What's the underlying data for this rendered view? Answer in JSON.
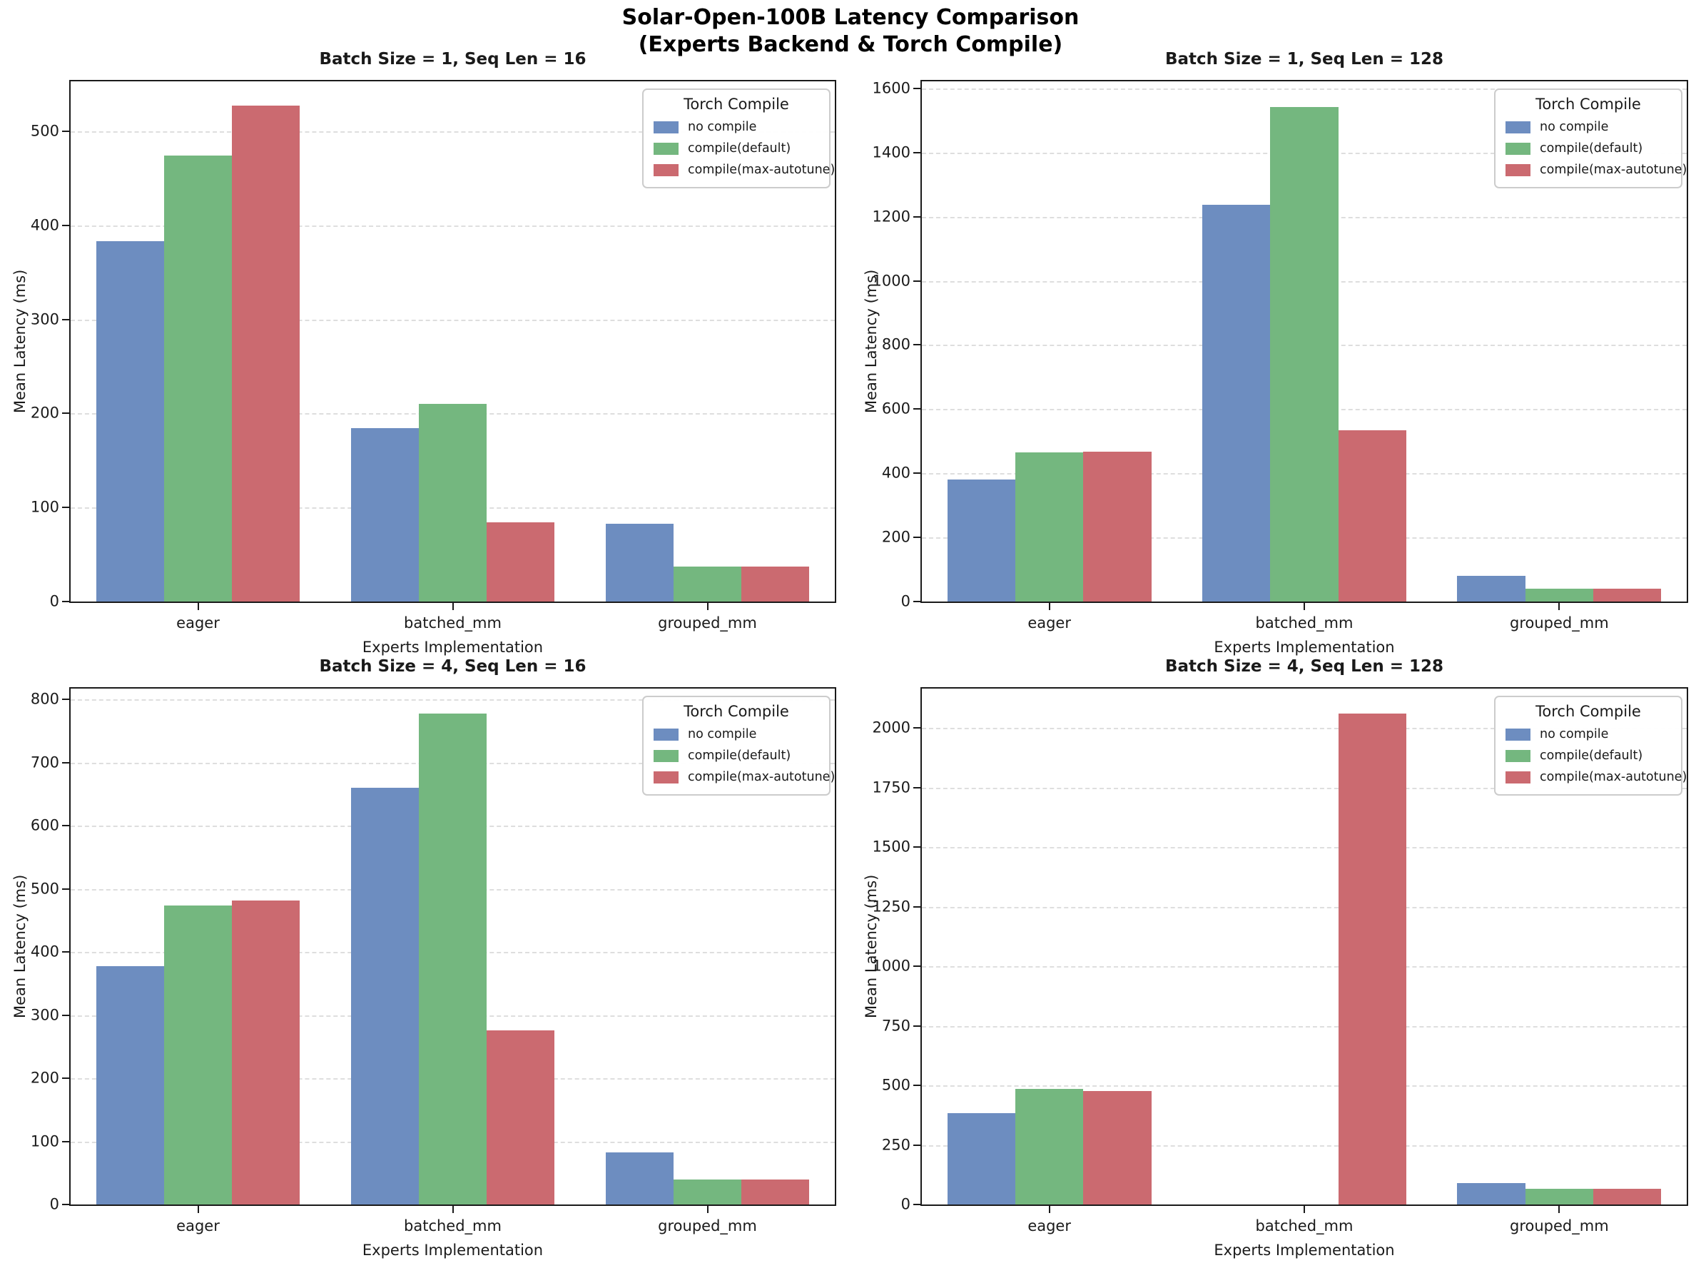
{
  "figure": {
    "title_line1": "Solar-Open-100B Latency Comparison",
    "title_line2": "(Experts Backend & Torch Compile)"
  },
  "colors": {
    "no_compile": "#6d8dc0",
    "compile_default": "#74b77f",
    "compile_max_autotune": "#cb6a70",
    "gridline": "#dedede",
    "spine": "#1a1a1a",
    "legend_border": "#cccccc"
  },
  "chart_data": [
    {
      "type": "bar",
      "title": "Batch Size = 1, Seq Len = 16",
      "xlabel": "Experts Implementation",
      "ylabel": "Mean Latency (ms)",
      "categories": [
        "eager",
        "batched_mm",
        "grouped_mm"
      ],
      "series": [
        {
          "name": "no compile",
          "color": "#6d8dc0",
          "values": [
            383,
            184,
            83
          ]
        },
        {
          "name": "compile(default)",
          "color": "#74b77f",
          "values": [
            474,
            210,
            37
          ]
        },
        {
          "name": "compile(max-autotune)",
          "color": "#cb6a70",
          "values": [
            527,
            84,
            37
          ]
        }
      ],
      "ylim": [
        0,
        553
      ],
      "ytick_step": 100,
      "ytick_max": 500,
      "grid": true,
      "legend_title": "Torch Compile",
      "legend_position": "upper right"
    },
    {
      "type": "bar",
      "title": "Batch Size = 1, Seq Len = 128",
      "xlabel": "Experts Implementation",
      "ylabel": "Mean Latency (ms)",
      "categories": [
        "eager",
        "batched_mm",
        "grouped_mm"
      ],
      "series": [
        {
          "name": "no compile",
          "color": "#6d8dc0",
          "values": [
            380,
            1237,
            80
          ]
        },
        {
          "name": "compile(default)",
          "color": "#74b77f",
          "values": [
            464,
            1542,
            40
          ]
        },
        {
          "name": "compile(max-autotune)",
          "color": "#cb6a70",
          "values": [
            467,
            533,
            41
          ]
        }
      ],
      "ylim": [
        0,
        1622
      ],
      "ytick_step": 200,
      "ytick_max": 1600,
      "grid": true,
      "legend_title": "Torch Compile",
      "legend_position": "upper right"
    },
    {
      "type": "bar",
      "title": "Batch Size = 4, Seq Len = 16",
      "xlabel": "Experts Implementation",
      "ylabel": "Mean Latency (ms)",
      "categories": [
        "eager",
        "batched_mm",
        "grouped_mm"
      ],
      "series": [
        {
          "name": "no compile",
          "color": "#6d8dc0",
          "values": [
            378,
            660,
            83
          ]
        },
        {
          "name": "compile(default)",
          "color": "#74b77f",
          "values": [
            473,
            778,
            40
          ]
        },
        {
          "name": "compile(max-autotune)",
          "color": "#cb6a70",
          "values": [
            481,
            276,
            40
          ]
        }
      ],
      "ylim": [
        0,
        817
      ],
      "ytick_step": 100,
      "ytick_max": 800,
      "grid": true,
      "legend_title": "Torch Compile",
      "legend_position": "upper right"
    },
    {
      "type": "bar",
      "title": "Batch Size = 4, Seq Len = 128",
      "xlabel": "Experts Implementation",
      "ylabel": "Mean Latency (ms)",
      "categories": [
        "eager",
        "batched_mm",
        "grouped_mm"
      ],
      "series": [
        {
          "name": "no compile",
          "color": "#6d8dc0",
          "values": [
            382,
            null,
            90
          ]
        },
        {
          "name": "compile(default)",
          "color": "#74b77f",
          "values": [
            485,
            null,
            67
          ]
        },
        {
          "name": "compile(max-autotune)",
          "color": "#cb6a70",
          "values": [
            477,
            2060,
            67
          ]
        }
      ],
      "ylim": [
        0,
        2165
      ],
      "ytick_step": 250,
      "ytick_max": 2000,
      "grid": true,
      "legend_title": "Torch Compile",
      "legend_position": "upper right"
    }
  ]
}
